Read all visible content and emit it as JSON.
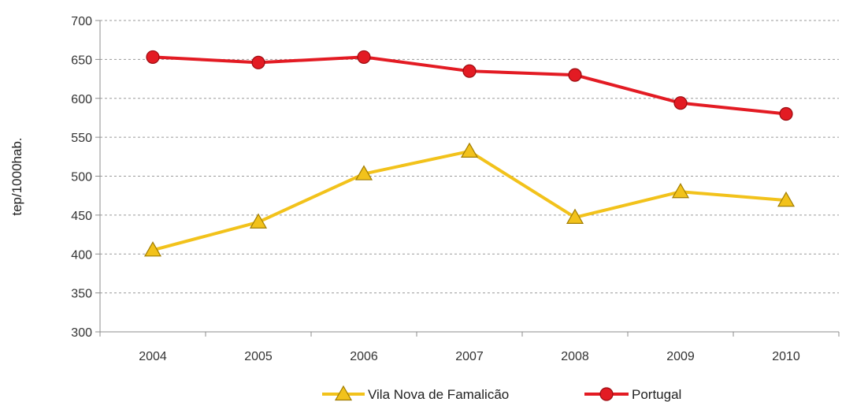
{
  "chart_data": {
    "type": "line",
    "title": "",
    "xlabel": "",
    "ylabel": "tep/1000hab.",
    "categories": [
      "2004",
      "2005",
      "2006",
      "2007",
      "2008",
      "2009",
      "2010"
    ],
    "ylim": [
      300,
      700
    ],
    "yticks": [
      300,
      350,
      400,
      450,
      500,
      550,
      600,
      650,
      700
    ],
    "grid": "horizontal-dashed",
    "legend_position": "bottom",
    "series": [
      {
        "name": "Vila Nova de Famalicão",
        "values": [
          405,
          441,
          503,
          532,
          447,
          480,
          469
        ],
        "color": "#f2c21b",
        "marker": "triangle"
      },
      {
        "name": "Portugal",
        "values": [
          653,
          646,
          653,
          635,
          630,
          594,
          580
        ],
        "color": "#e31b23",
        "marker": "circle"
      }
    ]
  }
}
